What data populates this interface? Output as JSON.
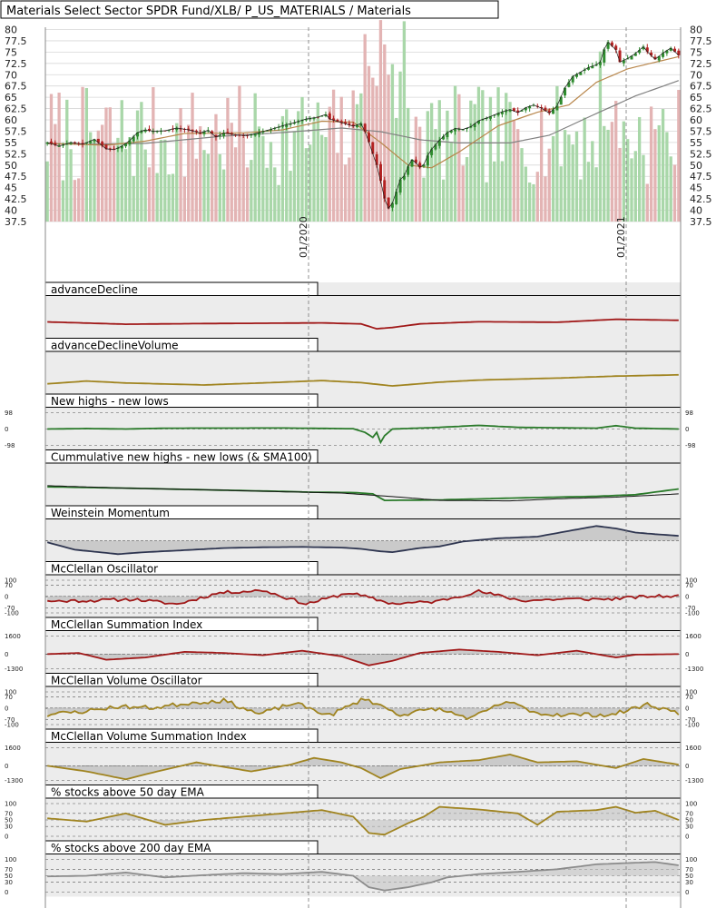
{
  "colors": {
    "up": "#2e8b2e",
    "down": "#b22222",
    "vol_up": "#a9d7a9",
    "vol_down": "#e3b4b4",
    "sma50": "#b8864b",
    "sma200": "#808080",
    "price_line": "#1a1a1a",
    "ad": "#a01818",
    "olive": "#a08420",
    "green": "#2a7a2a",
    "navy": "#2e3550",
    "red": "#a01818",
    "gray": "#8c8c8c",
    "panel_bg": "#ececec",
    "fill_gray": "#c4c4c4"
  },
  "chart_data": [
    {
      "type": "candlestick",
      "title": "Materials Select Sector SPDR Fund/XLB/ P_US_MATERIALS / Materials",
      "y_ticks": [
        80,
        77.5,
        75,
        72.5,
        70,
        67.5,
        65,
        62.5,
        60,
        57.5,
        55,
        52.5,
        50,
        47.5,
        45,
        42.5,
        40,
        37.5
      ],
      "y_tick_labels": [
        "80",
        "77.5",
        "75",
        "72.5",
        "70",
        "67.5",
        "65",
        "62.5",
        "60",
        "57.5",
        "55",
        "52.5",
        "50",
        "47.5",
        "45",
        "42.5",
        "40",
        "37.5"
      ],
      "ylim": [
        37.5,
        80.5
      ],
      "x_date_labels": [
        "01/2020",
        "01/2021"
      ],
      "grid": true,
      "anchors": [
        [
          0,
          55
        ],
        [
          3,
          54.2
        ],
        [
          6,
          55
        ],
        [
          9,
          54.6
        ],
        [
          12,
          55.7
        ],
        [
          15,
          53.6
        ],
        [
          17,
          53.4
        ],
        [
          19,
          54.2
        ],
        [
          21,
          55.4
        ],
        [
          23,
          57.2
        ],
        [
          25,
          57.8
        ],
        [
          27,
          57.5
        ],
        [
          30,
          57.6
        ],
        [
          33,
          58.2
        ],
        [
          36,
          57.8
        ],
        [
          39,
          57.1
        ],
        [
          41,
          57.7
        ],
        [
          43,
          56.2
        ],
        [
          45,
          57.1
        ],
        [
          48,
          56.7
        ],
        [
          51,
          56.5
        ],
        [
          54,
          57.2
        ],
        [
          57,
          57.9
        ],
        [
          60,
          58.7
        ],
        [
          63,
          59.4
        ],
        [
          66,
          60.2
        ],
        [
          69,
          60.6
        ],
        [
          71,
          61.2
        ],
        [
          72,
          60.2
        ],
        [
          75,
          59.4
        ],
        [
          78,
          58.6
        ],
        [
          80,
          59.2
        ],
        [
          81,
          57.4
        ],
        [
          82,
          55.1
        ],
        [
          83,
          52.5
        ],
        [
          84,
          50
        ],
        [
          85,
          46.5
        ],
        [
          86,
          42.6
        ],
        [
          87,
          40.4
        ],
        [
          88,
          41.6
        ],
        [
          89,
          44.1
        ],
        [
          90,
          46.8
        ],
        [
          91,
          47.6
        ],
        [
          92,
          49.7
        ],
        [
          93,
          51.2
        ],
        [
          94,
          50.5
        ],
        [
          95,
          49.5
        ],
        [
          96,
          50.1
        ],
        [
          97,
          52.1
        ],
        [
          98,
          53.5
        ],
        [
          100,
          55.5
        ],
        [
          102,
          57.2
        ],
        [
          104,
          58.1
        ],
        [
          106,
          57.9
        ],
        [
          108,
          58.5
        ],
        [
          110,
          59.8
        ],
        [
          112,
          60.4
        ],
        [
          114,
          61.1
        ],
        [
          116,
          61.8
        ],
        [
          118,
          62.3
        ],
        [
          120,
          61.6
        ],
        [
          122,
          62.7
        ],
        [
          124,
          63.3
        ],
        [
          126,
          62.6
        ],
        [
          128,
          61.5
        ],
        [
          130,
          63.1
        ],
        [
          132,
          67.1
        ],
        [
          134,
          69.6
        ],
        [
          136,
          70.6
        ],
        [
          138,
          71.6
        ],
        [
          140,
          72.2
        ],
        [
          141,
          72.8
        ],
        [
          142,
          75.6
        ],
        [
          143,
          77.2
        ],
        [
          145,
          75.5
        ],
        [
          146,
          72.8
        ],
        [
          148,
          73.6
        ],
        [
          150,
          74.7
        ],
        [
          152,
          76.2
        ],
        [
          153,
          75.1
        ],
        [
          155,
          73.4
        ],
        [
          157,
          74.8
        ],
        [
          159,
          75.9
        ],
        [
          161,
          74.3
        ]
      ],
      "sma50_anchors": [
        [
          0,
          54.8
        ],
        [
          15,
          54.4
        ],
        [
          25,
          55.3
        ],
        [
          35,
          57
        ],
        [
          50,
          57.1
        ],
        [
          60,
          57.8
        ],
        [
          70,
          59.7
        ],
        [
          78,
          59.5
        ],
        [
          85,
          55
        ],
        [
          92,
          50
        ],
        [
          98,
          49.4
        ],
        [
          105,
          52.9
        ],
        [
          115,
          58.7
        ],
        [
          125,
          61.7
        ],
        [
          133,
          63.3
        ],
        [
          140,
          68.3
        ],
        [
          148,
          71.3
        ],
        [
          161,
          74
        ]
      ],
      "sma200_anchors": [
        [
          0,
          54.7
        ],
        [
          10,
          54.6
        ],
        [
          25,
          54.8
        ],
        [
          45,
          56.4
        ],
        [
          60,
          57.2
        ],
        [
          75,
          58.2
        ],
        [
          85,
          57.4
        ],
        [
          95,
          55.6
        ],
        [
          105,
          54.9
        ],
        [
          118,
          54.9
        ],
        [
          128,
          56.6
        ],
        [
          140,
          61.4
        ],
        [
          150,
          65.3
        ],
        [
          161,
          68.7
        ]
      ]
    },
    {
      "type": "line",
      "title": "advanceDecline",
      "anchors": [
        [
          0,
          0.28
        ],
        [
          10,
          0.35
        ],
        [
          20,
          0.42
        ],
        [
          40,
          0.38
        ],
        [
          70,
          0.34
        ],
        [
          80,
          0.4
        ],
        [
          84,
          0.7
        ],
        [
          88,
          0.62
        ],
        [
          95,
          0.4
        ],
        [
          110,
          0.27
        ],
        [
          130,
          0.3
        ],
        [
          145,
          0.12
        ],
        [
          161,
          0.18
        ]
      ]
    },
    {
      "type": "line",
      "title": "advanceDeclineVolume",
      "anchors": [
        [
          0,
          0.65
        ],
        [
          10,
          0.48
        ],
        [
          20,
          0.6
        ],
        [
          40,
          0.72
        ],
        [
          60,
          0.55
        ],
        [
          70,
          0.45
        ],
        [
          80,
          0.58
        ],
        [
          88,
          0.78
        ],
        [
          100,
          0.55
        ],
        [
          110,
          0.42
        ],
        [
          130,
          0.3
        ],
        [
          145,
          0.18
        ],
        [
          161,
          0.1
        ]
      ]
    },
    {
      "type": "line",
      "title": "New highs - new lows",
      "y_tick_labels": [
        "98",
        "0",
        "-98"
      ],
      "ylim": [
        -98,
        98
      ],
      "anchors": [
        [
          0,
          0
        ],
        [
          10,
          3
        ],
        [
          20,
          0
        ],
        [
          30,
          5
        ],
        [
          60,
          6
        ],
        [
          78,
          2
        ],
        [
          81,
          -20
        ],
        [
          83,
          -50
        ],
        [
          84,
          -20
        ],
        [
          85,
          -80
        ],
        [
          86,
          -40
        ],
        [
          88,
          0
        ],
        [
          100,
          10
        ],
        [
          110,
          22
        ],
        [
          120,
          10
        ],
        [
          140,
          5
        ],
        [
          145,
          20
        ],
        [
          150,
          5
        ],
        [
          161,
          0
        ]
      ]
    },
    {
      "type": "line",
      "title": "Cummulative new highs - new lows (& SMA100)",
      "series": [
        {
          "anchors": [
            [
              0,
              0.12
            ],
            [
              20,
              0.2
            ],
            [
              40,
              0.3
            ],
            [
              60,
              0.4
            ],
            [
              68,
              0.45
            ],
            [
              78,
              0.47
            ],
            [
              83,
              0.55
            ],
            [
              86,
              0.95
            ],
            [
              100,
              0.92
            ],
            [
              120,
              0.8
            ],
            [
              140,
              0.7
            ],
            [
              150,
              0.6
            ],
            [
              161,
              0.25
            ]
          ]
        },
        {
          "anchors": [
            [
              0,
              0.05
            ],
            [
              20,
              0.2
            ],
            [
              40,
              0.3
            ],
            [
              60,
              0.42
            ],
            [
              75,
              0.5
            ],
            [
              90,
              0.75
            ],
            [
              100,
              0.95
            ],
            [
              118,
              0.98
            ],
            [
              130,
              0.85
            ],
            [
              145,
              0.75
            ],
            [
              161,
              0.55
            ]
          ]
        }
      ]
    },
    {
      "type": "area",
      "title": "Weinstein Momentum",
      "anchors": [
        [
          0,
          0.1
        ],
        [
          7,
          0.55
        ],
        [
          14,
          0.72
        ],
        [
          18,
          0.82
        ],
        [
          25,
          0.7
        ],
        [
          35,
          0.58
        ],
        [
          45,
          0.45
        ],
        [
          55,
          0.4
        ],
        [
          65,
          0.38
        ],
        [
          75,
          0.42
        ],
        [
          80,
          0.5
        ],
        [
          85,
          0.65
        ],
        [
          88,
          0.7
        ],
        [
          95,
          0.45
        ],
        [
          100,
          0.35
        ],
        [
          106,
          0.05
        ],
        [
          115,
          -0.15
        ],
        [
          125,
          -0.25
        ],
        [
          133,
          -0.6
        ],
        [
          140,
          -0.9
        ],
        [
          145,
          -0.75
        ],
        [
          150,
          -0.5
        ],
        [
          155,
          -0.4
        ],
        [
          161,
          -0.3
        ]
      ]
    },
    {
      "type": "area",
      "title": "McClellan Oscillator",
      "y_tick_labels": [
        "100",
        "70",
        "0",
        "-70",
        "-100"
      ],
      "ylim": [
        -100,
        100
      ],
      "seed": 11,
      "amp": 55,
      "lengths": 11
    },
    {
      "type": "area",
      "title": "McClellan Summation Index",
      "y_tick_labels": [
        "1600",
        "0",
        "-1300"
      ],
      "ylim": [
        -1300,
        1600
      ],
      "anchors": [
        [
          0,
          0
        ],
        [
          8,
          100
        ],
        [
          15,
          -500
        ],
        [
          25,
          -300
        ],
        [
          35,
          200
        ],
        [
          45,
          100
        ],
        [
          55,
          -100
        ],
        [
          65,
          300
        ],
        [
          75,
          -200
        ],
        [
          82,
          -1000
        ],
        [
          88,
          -600
        ],
        [
          95,
          100
        ],
        [
          105,
          400
        ],
        [
          115,
          200
        ],
        [
          125,
          -100
        ],
        [
          135,
          300
        ],
        [
          145,
          -300
        ],
        [
          150,
          -50
        ],
        [
          161,
          0
        ]
      ]
    },
    {
      "type": "area",
      "title": "McClellan Volume Oscillator",
      "y_tick_labels": [
        "100",
        "70",
        "0",
        "-70",
        "-100"
      ],
      "ylim": [
        -100,
        100
      ],
      "seed": 23,
      "amp": 75,
      "lengths": 9
    },
    {
      "type": "area",
      "title": "McClellan Volume Summation Index",
      "y_tick_labels": [
        "1600",
        "0",
        "-1300"
      ],
      "ylim": [
        -1300,
        1600
      ],
      "anchors": [
        [
          0,
          0
        ],
        [
          10,
          -500
        ],
        [
          20,
          -1200
        ],
        [
          28,
          -500
        ],
        [
          38,
          300
        ],
        [
          45,
          -100
        ],
        [
          52,
          -500
        ],
        [
          62,
          100
        ],
        [
          68,
          700
        ],
        [
          75,
          300
        ],
        [
          80,
          -200
        ],
        [
          85,
          -1100
        ],
        [
          90,
          -300
        ],
        [
          100,
          300
        ],
        [
          110,
          500
        ],
        [
          118,
          1000
        ],
        [
          125,
          300
        ],
        [
          135,
          400
        ],
        [
          145,
          -200
        ],
        [
          152,
          600
        ],
        [
          161,
          100
        ]
      ]
    },
    {
      "type": "line",
      "title": "% stocks above 50 day EMA",
      "y_tick_labels": [
        "100",
        "70",
        "50",
        "30",
        "0"
      ],
      "ylim": [
        0,
        100
      ],
      "anchors": [
        [
          0,
          55
        ],
        [
          10,
          45
        ],
        [
          20,
          70
        ],
        [
          30,
          35
        ],
        [
          40,
          50
        ],
        [
          50,
          60
        ],
        [
          60,
          70
        ],
        [
          70,
          80
        ],
        [
          78,
          60
        ],
        [
          82,
          10
        ],
        [
          86,
          5
        ],
        [
          92,
          40
        ],
        [
          96,
          60
        ],
        [
          100,
          90
        ],
        [
          110,
          82
        ],
        [
          120,
          70
        ],
        [
          125,
          35
        ],
        [
          130,
          75
        ],
        [
          140,
          80
        ],
        [
          145,
          90
        ],
        [
          150,
          72
        ],
        [
          155,
          78
        ],
        [
          161,
          50
        ]
      ]
    },
    {
      "type": "line",
      "title": "% stocks above 200 day EMA",
      "y_tick_labels": [
        "100",
        "70",
        "50",
        "30",
        "0"
      ],
      "ylim": [
        0,
        100
      ],
      "anchors": [
        [
          0,
          48
        ],
        [
          10,
          50
        ],
        [
          20,
          60
        ],
        [
          30,
          45
        ],
        [
          40,
          52
        ],
        [
          50,
          58
        ],
        [
          60,
          55
        ],
        [
          70,
          62
        ],
        [
          78,
          50
        ],
        [
          82,
          15
        ],
        [
          86,
          5
        ],
        [
          92,
          15
        ],
        [
          98,
          30
        ],
        [
          102,
          45
        ],
        [
          110,
          55
        ],
        [
          120,
          62
        ],
        [
          130,
          70
        ],
        [
          140,
          85
        ],
        [
          150,
          90
        ],
        [
          155,
          92
        ],
        [
          161,
          82
        ]
      ]
    }
  ]
}
